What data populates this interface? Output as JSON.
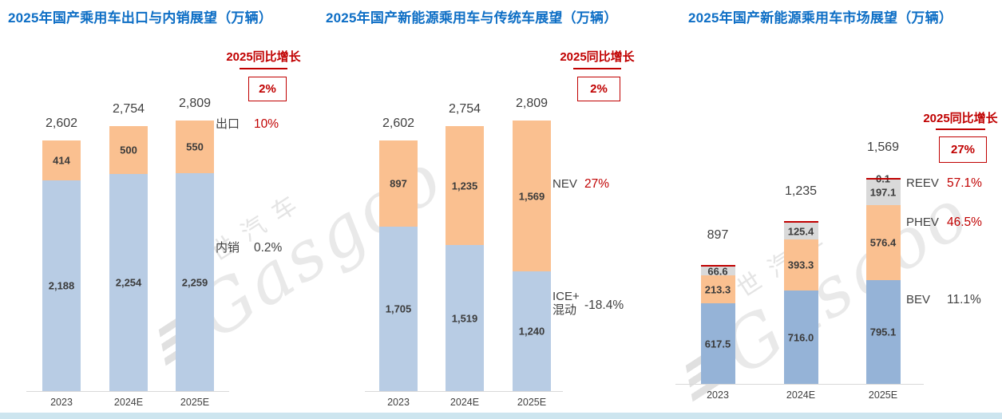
{
  "watermark": {
    "cn": "盖世汽车",
    "en": "Gasgoo"
  },
  "chart_data": [
    {
      "type": "bar",
      "stacked": true,
      "title": "2025年国产乘用车出口与内销展望（万辆）",
      "growth_header": "2025同比增长",
      "growth_box": "2%",
      "categories": [
        "2023",
        "2024E",
        "2025E"
      ],
      "totals": {
        "values": [
          2602,
          2754,
          2809
        ],
        "labels": [
          "2,602",
          "2,754",
          "2,809"
        ]
      },
      "series": [
        {
          "name": "内销",
          "color": "#B8CCE4",
          "values": [
            2188,
            2254,
            2259
          ],
          "labels": [
            "2,188",
            "2,254",
            "2,259"
          ]
        },
        {
          "name": "出口",
          "color": "#FAC090",
          "values": [
            414,
            500,
            550
          ],
          "labels": [
            "414",
            "500",
            "550"
          ]
        }
      ],
      "annotations": [
        {
          "label": "出口",
          "pct": "10%",
          "pct_color": "#c00000"
        },
        {
          "label": "内销",
          "pct": "0.2%",
          "pct_color": "#404040"
        }
      ],
      "ylim": [
        0,
        2900
      ],
      "grid": false,
      "legend_position": "right-of-bars"
    },
    {
      "type": "bar",
      "stacked": true,
      "title": "2025年国产新能源乘用车与传统车展望（万辆）",
      "growth_header": "2025同比增长",
      "growth_box": "2%",
      "categories": [
        "2023",
        "2024E",
        "2025E"
      ],
      "totals": {
        "values": [
          2602,
          2754,
          2809
        ],
        "labels": [
          "2,602",
          "2,754",
          "2,809"
        ]
      },
      "series": [
        {
          "name": "ICE+混动",
          "color": "#B8CCE4",
          "values": [
            1705,
            1519,
            1240
          ],
          "labels": [
            "1,705",
            "1,519",
            "1,240"
          ]
        },
        {
          "name": "NEV",
          "color": "#FAC090",
          "values": [
            897,
            1235,
            1569
          ],
          "labels": [
            "897",
            "1,235",
            "1,569"
          ]
        }
      ],
      "annotations": [
        {
          "label": "NEV",
          "pct": "27%",
          "pct_color": "#c00000"
        },
        {
          "label": "ICE+\n混动",
          "pct": "-18.4%",
          "pct_color": "#404040"
        }
      ],
      "ylim": [
        0,
        2900
      ],
      "grid": false,
      "legend_position": "right-of-bars"
    },
    {
      "type": "bar",
      "stacked": true,
      "title": "2025年国产新能源乘用车市场展望（万辆）",
      "growth_header": "2025同比增长",
      "growth_box": "27%",
      "categories": [
        "2023",
        "2024E",
        "2025E"
      ],
      "totals": {
        "values": [
          897,
          1235,
          1569
        ],
        "labels": [
          "897",
          "1,235",
          "1,569"
        ]
      },
      "series": [
        {
          "name": "BEV",
          "color": "#95B3D7",
          "values": [
            617.5,
            716.0,
            795.1
          ],
          "labels": [
            "617.5",
            "716.0",
            "795.1"
          ]
        },
        {
          "name": "PHEV",
          "color": "#FAC090",
          "values": [
            213.3,
            393.3,
            576.4
          ],
          "labels": [
            "213.3",
            "393.3",
            "576.4"
          ]
        },
        {
          "name": "REEV",
          "color": "#D9D9D9",
          "values": [
            66.6,
            125.4,
            197.1
          ],
          "labels": [
            "66.6",
            "125.4",
            "197.1"
          ]
        },
        {
          "name": "",
          "color": "#C00000",
          "thin_line": true,
          "values": [
            null,
            null,
            0.1
          ],
          "labels": [
            "",
            "",
            "0.1"
          ]
        }
      ],
      "annotations": [
        {
          "label": "REEV",
          "pct": "57.1%",
          "pct_color": "#c00000"
        },
        {
          "label": "PHEV",
          "pct": "46.5%",
          "pct_color": "#c00000"
        },
        {
          "label": "BEV",
          "pct": "11.1%",
          "pct_color": "#404040"
        }
      ],
      "ylim": [
        0,
        1700
      ],
      "grid": false,
      "legend_position": "right-of-bars"
    }
  ]
}
